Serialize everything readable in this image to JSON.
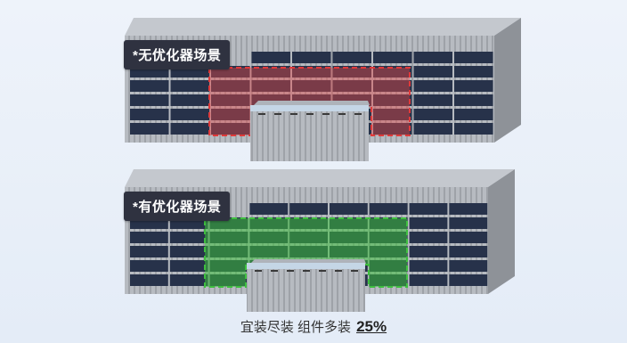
{
  "scenarios": {
    "without_optimizer": {
      "label": "*无优化器场景",
      "highlight_color": "#e03a3a"
    },
    "with_optimizer": {
      "label": "*有优化器场景",
      "highlight_color": "#3fbf3f"
    }
  },
  "caption": {
    "text": "宜装尽装 组件多装",
    "value": "25%"
  },
  "colors": {
    "panel": "#27324a",
    "wall": "#9ea3aa",
    "roof": "#c9ccd1"
  }
}
